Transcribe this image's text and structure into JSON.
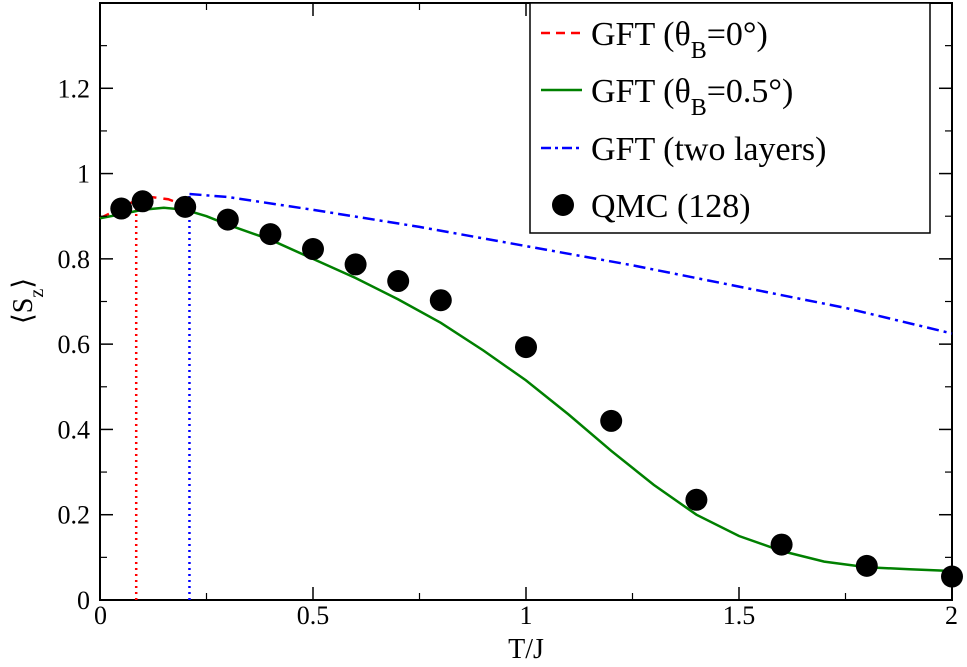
{
  "chart_data": {
    "type": "line",
    "xlabel": "T/J",
    "ylabel": "⟨S_z⟩",
    "xlim": [
      0,
      2
    ],
    "ylim": [
      0,
      1.4
    ],
    "xticks": [
      0,
      0.5,
      1,
      1.5,
      2
    ],
    "xtick_labels": [
      "0",
      "0.5",
      "1",
      "1.5",
      "2"
    ],
    "yticks": [
      0,
      0.2,
      0.4,
      0.6,
      0.8,
      1.0,
      1.2
    ],
    "ytick_labels": [
      "0",
      "0.2",
      "0.4",
      "0.6",
      "0.8",
      "1",
      "1.2"
    ],
    "grid": false,
    "legend_position": "top-right",
    "series": [
      {
        "name": "GFT (θB=0°)",
        "style": "dashed",
        "color": "#ff0000",
        "x": [
          0.0,
          0.04,
          0.08,
          0.12,
          0.16,
          0.2
        ],
        "y": [
          0.895,
          0.915,
          0.935,
          0.945,
          0.94,
          0.925
        ]
      },
      {
        "name": "GFT (θB=0.5°)",
        "style": "solid",
        "color": "#008000",
        "x": [
          0.0,
          0.05,
          0.1,
          0.15,
          0.2,
          0.25,
          0.3,
          0.4,
          0.5,
          0.6,
          0.7,
          0.8,
          0.9,
          1.0,
          1.1,
          1.2,
          1.3,
          1.4,
          1.5,
          1.6,
          1.7,
          1.8,
          1.9,
          2.0
        ],
        "y": [
          0.895,
          0.905,
          0.915,
          0.92,
          0.915,
          0.9,
          0.88,
          0.845,
          0.8,
          0.755,
          0.705,
          0.65,
          0.585,
          0.515,
          0.435,
          0.35,
          0.27,
          0.2,
          0.15,
          0.115,
          0.09,
          0.077,
          0.072,
          0.068
        ]
      },
      {
        "name": "GFT (two layers)",
        "style": "dash-dot",
        "color": "#0000ff",
        "x": [
          0.21,
          0.3,
          0.5,
          0.75,
          1.0,
          1.25,
          1.5,
          1.75,
          2.0
        ],
        "y": [
          0.952,
          0.945,
          0.915,
          0.875,
          0.83,
          0.785,
          0.735,
          0.685,
          0.625
        ]
      },
      {
        "name": "QMC (128)",
        "style": "markers",
        "color": "#000000",
        "x": [
          0.05,
          0.1,
          0.2,
          0.3,
          0.4,
          0.5,
          0.6,
          0.7,
          0.8,
          1.0,
          1.2,
          1.4,
          1.6,
          1.8,
          2.0
        ],
        "y": [
          0.918,
          0.935,
          0.922,
          0.892,
          0.858,
          0.823,
          0.787,
          0.748,
          0.703,
          0.593,
          0.42,
          0.235,
          0.13,
          0.08,
          0.055
        ]
      }
    ],
    "vertical_markers": [
      {
        "x": 0.085,
        "y_top": 0.935,
        "color": "#ff0000",
        "style": "dotted"
      },
      {
        "x": 0.21,
        "y_top": 0.952,
        "color": "#0000ff",
        "style": "dotted"
      }
    ]
  }
}
